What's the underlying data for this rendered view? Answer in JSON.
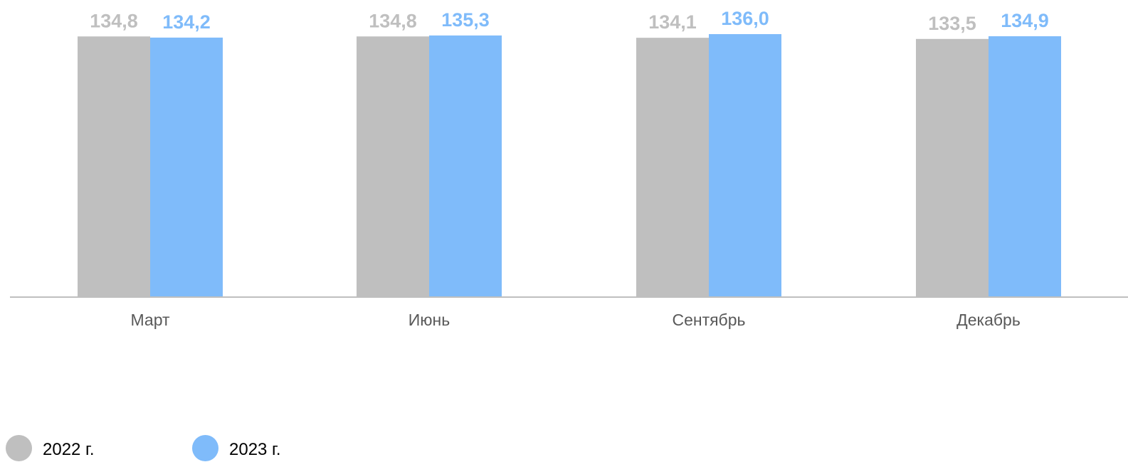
{
  "chart_data": {
    "type": "bar",
    "title": "",
    "xlabel": "",
    "ylabel": "",
    "categories": [
      "Март",
      "Июнь",
      "Сентябрь",
      "Декабрь"
    ],
    "series": [
      {
        "name": "2022 г.",
        "color": "#bfbfbf",
        "label_color": "#bfbfbf",
        "values": [
          134.8,
          134.8,
          134.1,
          133.5
        ],
        "labels": [
          "134,8",
          "134,8",
          "134,1",
          "133,5"
        ]
      },
      {
        "name": "2023 г.",
        "color": "#7fbbfa",
        "label_color": "#7fbbfa",
        "values": [
          134.2,
          135.3,
          136.0,
          134.9
        ],
        "labels": [
          "134,2",
          "135,3",
          "136,0",
          "134,9"
        ]
      }
    ],
    "ylim": [
      0,
      136.0
    ],
    "grid": false,
    "legend": "bottom-left"
  },
  "colors": {
    "axis": "#bfbfbf",
    "category_label": "#595959"
  }
}
